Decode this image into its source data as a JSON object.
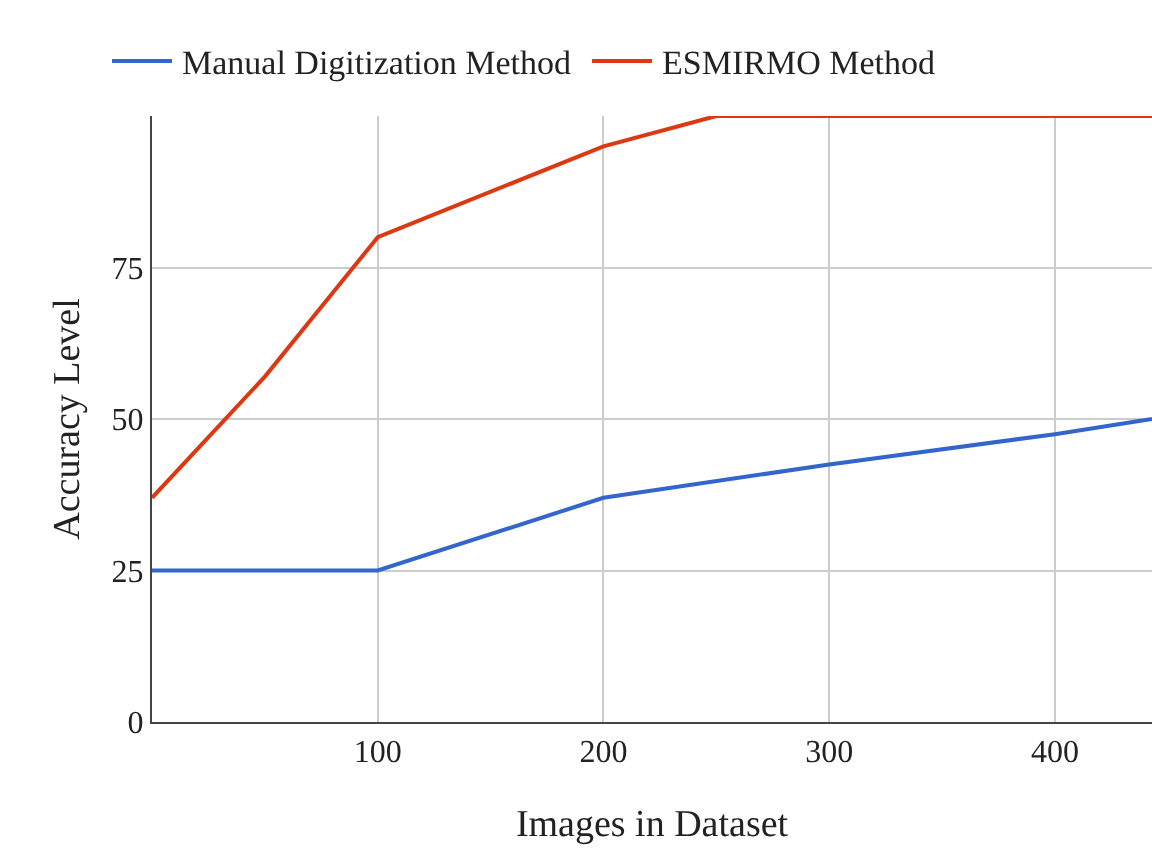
{
  "chart_data": {
    "type": "line",
    "xlabel": "Images in Dataset",
    "ylabel": "Accuracy Level",
    "xlim": [
      0,
      443
    ],
    "xticks": [
      100,
      200,
      300,
      400
    ],
    "ylim": [
      0,
      100
    ],
    "yticks": [
      0,
      25,
      50,
      75
    ],
    "grid": true,
    "legend": "top",
    "marker": "none",
    "line_style": "solid",
    "series": [
      {
        "name": "Manual Digitization Method",
        "color": "#3366cc",
        "x": [
          0,
          100,
          200,
          300,
          400,
          443
        ],
        "values": [
          25,
          25,
          37,
          42.5,
          47.5,
          50
        ]
      },
      {
        "name": "ESMIRMO Method",
        "color": "#dc3912",
        "x": [
          0,
          50,
          100,
          200,
          250,
          443
        ],
        "values": [
          37,
          57,
          80,
          95,
          100,
          100
        ]
      }
    ]
  }
}
